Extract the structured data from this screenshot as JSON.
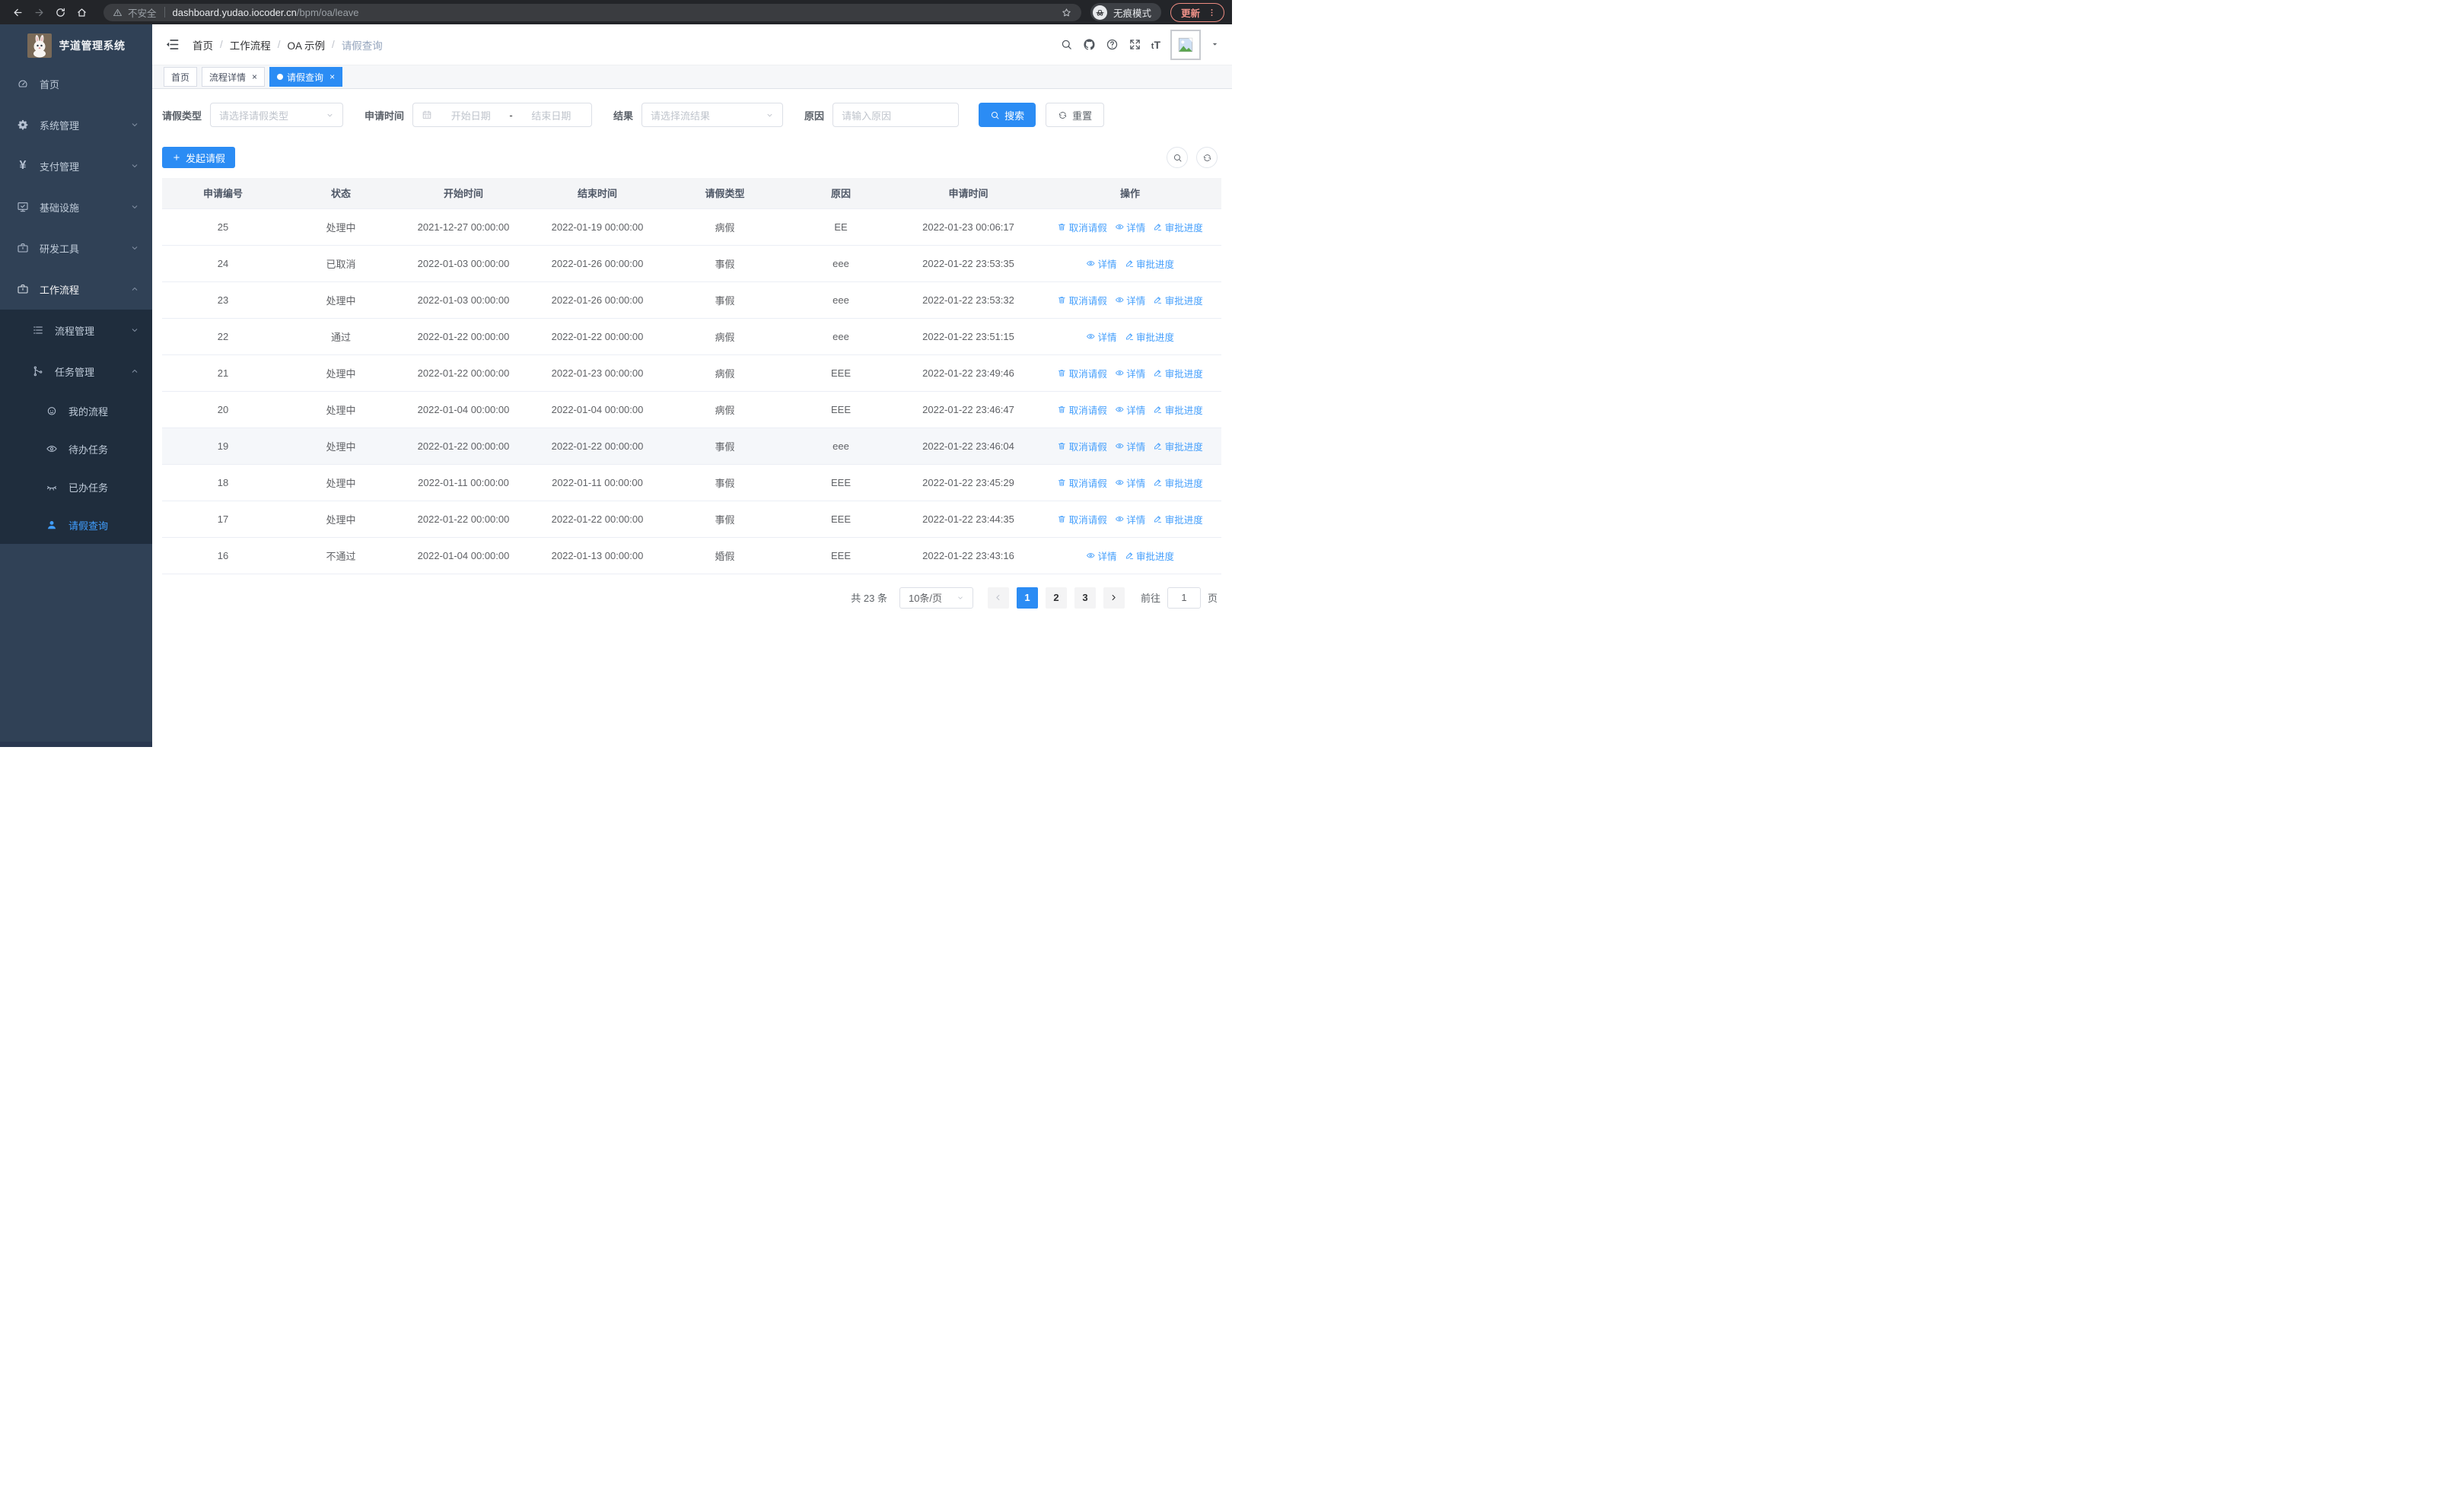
{
  "colors": {
    "accent": "#2b8cf4",
    "link": "#459ffc",
    "sidebar_bg": "#304156",
    "submenu_bg": "#1f2d3d",
    "active_menu": "#409eff"
  },
  "chrome": {
    "security_label": "不安全",
    "url_host": "dashboard.yudao.iocoder.cn",
    "url_path": "/bpm/oa/leave",
    "incognito_label": "无痕模式",
    "update_label": "更新",
    "icons": [
      "back",
      "forward",
      "reload",
      "home",
      "warning",
      "star",
      "incognito",
      "kebab-menu"
    ]
  },
  "sidebar": {
    "app_title": "芋道管理系统",
    "items": [
      {
        "key": "home",
        "icon": "dashboard",
        "label": "首页",
        "level": 1
      },
      {
        "key": "system",
        "icon": "gear",
        "label": "系统管理",
        "level": 1,
        "arrow": "down"
      },
      {
        "key": "payment",
        "icon": "yen",
        "label": "支付管理",
        "level": 1,
        "arrow": "down"
      },
      {
        "key": "infra",
        "icon": "monitor",
        "label": "基础设施",
        "level": 1,
        "arrow": "down"
      },
      {
        "key": "devtools",
        "icon": "briefcase",
        "label": "研发工具",
        "level": 1,
        "arrow": "down"
      },
      {
        "key": "workflow",
        "icon": "briefcase",
        "label": "工作流程",
        "level": 1,
        "arrow": "up",
        "highlight": true
      },
      {
        "key": "process-mgmt",
        "icon": "list",
        "label": "流程管理",
        "level": 2,
        "arrow": "down",
        "sub": true
      },
      {
        "key": "task-mgmt",
        "icon": "branch",
        "label": "任务管理",
        "level": 2,
        "arrow": "up",
        "sub": true
      },
      {
        "key": "my-process",
        "icon": "robot",
        "label": "我的流程",
        "level": 3,
        "sub": true
      },
      {
        "key": "todo-task",
        "icon": "eye",
        "label": "待办任务",
        "level": 3,
        "sub": true
      },
      {
        "key": "done-task",
        "icon": "eye-closed",
        "label": "已办任务",
        "level": 3,
        "sub": true
      },
      {
        "key": "leave-query",
        "icon": "user",
        "label": "请假查询",
        "level": 3,
        "sub": true,
        "active": true
      }
    ]
  },
  "header": {
    "breadcrumb": [
      "首页",
      "工作流程",
      "OA 示例",
      "请假查询"
    ],
    "font_size_label": "tT",
    "icons": [
      "hamburger",
      "search",
      "github",
      "help",
      "fullscreen",
      "font-size",
      "avatar",
      "caret-down"
    ]
  },
  "tabs": [
    {
      "label": "首页"
    },
    {
      "label": "流程详情",
      "closable": true
    },
    {
      "label": "请假查询",
      "closable": true,
      "active": true
    }
  ],
  "filters": {
    "leave_type_label": "请假类型",
    "leave_type_placeholder": "请选择请假类型",
    "apply_time_label": "申请时间",
    "start_placeholder": "开始日期",
    "range_separator": "-",
    "end_placeholder": "结束日期",
    "result_label": "结果",
    "result_placeholder": "请选择流结果",
    "reason_label": "原因",
    "reason_placeholder": "请输入原因",
    "search_label": "搜索",
    "reset_label": "重置"
  },
  "toolbar": {
    "create_label": "发起请假"
  },
  "table": {
    "columns": [
      "申请编号",
      "状态",
      "开始时间",
      "结束时间",
      "请假类型",
      "原因",
      "申请时间",
      "操作"
    ],
    "action_labels": {
      "cancel": "取消请假",
      "detail": "详情",
      "progress": "审批进度"
    },
    "rows": [
      {
        "id": "25",
        "status": "处理中",
        "start": "2021-12-27 00:00:00",
        "end": "2022-01-19 00:00:00",
        "type": "病假",
        "reason": "EE",
        "applied": "2022-01-23 00:06:17",
        "actions": [
          "cancel",
          "detail",
          "progress"
        ]
      },
      {
        "id": "24",
        "status": "已取消",
        "start": "2022-01-03 00:00:00",
        "end": "2022-01-26 00:00:00",
        "type": "事假",
        "reason": "eee",
        "applied": "2022-01-22 23:53:35",
        "actions": [
          "detail",
          "progress"
        ]
      },
      {
        "id": "23",
        "status": "处理中",
        "start": "2022-01-03 00:00:00",
        "end": "2022-01-26 00:00:00",
        "type": "事假",
        "reason": "eee",
        "applied": "2022-01-22 23:53:32",
        "actions": [
          "cancel",
          "detail",
          "progress"
        ]
      },
      {
        "id": "22",
        "status": "通过",
        "start": "2022-01-22 00:00:00",
        "end": "2022-01-22 00:00:00",
        "type": "病假",
        "reason": "eee",
        "applied": "2022-01-22 23:51:15",
        "actions": [
          "detail",
          "progress"
        ]
      },
      {
        "id": "21",
        "status": "处理中",
        "start": "2022-01-22 00:00:00",
        "end": "2022-01-23 00:00:00",
        "type": "病假",
        "reason": "EEE",
        "applied": "2022-01-22 23:49:46",
        "actions": [
          "cancel",
          "detail",
          "progress"
        ]
      },
      {
        "id": "20",
        "status": "处理中",
        "start": "2022-01-04 00:00:00",
        "end": "2022-01-04 00:00:00",
        "type": "病假",
        "reason": "EEE",
        "applied": "2022-01-22 23:46:47",
        "actions": [
          "cancel",
          "detail",
          "progress"
        ]
      },
      {
        "id": "19",
        "status": "处理中",
        "start": "2022-01-22 00:00:00",
        "end": "2022-01-22 00:00:00",
        "type": "事假",
        "reason": "eee",
        "applied": "2022-01-22 23:46:04",
        "actions": [
          "cancel",
          "detail",
          "progress"
        ],
        "hover": true
      },
      {
        "id": "18",
        "status": "处理中",
        "start": "2022-01-11 00:00:00",
        "end": "2022-01-11 00:00:00",
        "type": "事假",
        "reason": "EEE",
        "applied": "2022-01-22 23:45:29",
        "actions": [
          "cancel",
          "detail",
          "progress"
        ]
      },
      {
        "id": "17",
        "status": "处理中",
        "start": "2022-01-22 00:00:00",
        "end": "2022-01-22 00:00:00",
        "type": "事假",
        "reason": "EEE",
        "applied": "2022-01-22 23:44:35",
        "actions": [
          "cancel",
          "detail",
          "progress"
        ]
      },
      {
        "id": "16",
        "status": "不通过",
        "start": "2022-01-04 00:00:00",
        "end": "2022-01-13 00:00:00",
        "type": "婚假",
        "reason": "EEE",
        "applied": "2022-01-22 23:43:16",
        "actions": [
          "detail",
          "progress"
        ]
      }
    ]
  },
  "pagination": {
    "total_label": "共 23 条",
    "page_size": "10条/页",
    "pages": [
      "1",
      "2",
      "3"
    ],
    "active_page": "1",
    "goto_label": "前往",
    "goto_value": "1",
    "page_label": "页"
  }
}
